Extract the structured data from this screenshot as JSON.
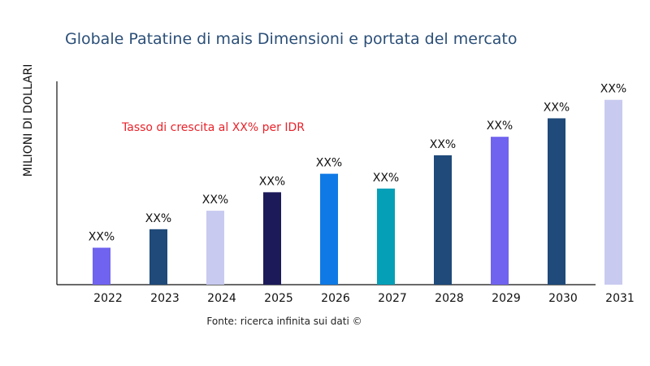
{
  "chart_data": {
    "type": "bar",
    "title": "Globale Patatine di mais Dimensioni e portata del mercato",
    "ylabel": "MILIONI DI DOLLARI",
    "xlabel": "",
    "categories": [
      "2022",
      "2023",
      "2024",
      "2025",
      "2026",
      "2027",
      "2028",
      "2029",
      "2030",
      "2031"
    ],
    "values": [
      20,
      30,
      40,
      50,
      60,
      52,
      70,
      80,
      90,
      100
    ],
    "data_labels": [
      "XX%",
      "XX%",
      "XX%",
      "XX%",
      "XX%",
      "XX%",
      "XX%",
      "XX%",
      "XX%",
      "XX%"
    ],
    "colors": [
      "#7063ef",
      "#1f4a7a",
      "#c8caf0",
      "#1d1a5a",
      "#0f7ae5",
      "#05a0b8",
      "#1f4a7a",
      "#7063ef",
      "#1f4a7a",
      "#c8caf0"
    ],
    "ylim": [
      0,
      110
    ],
    "grid": false,
    "annotation": "Tasso di crescita al XX% per IDR",
    "annotation_color": "#e8232a",
    "source": "Fonte: ricerca infinita sui dati ©"
  }
}
